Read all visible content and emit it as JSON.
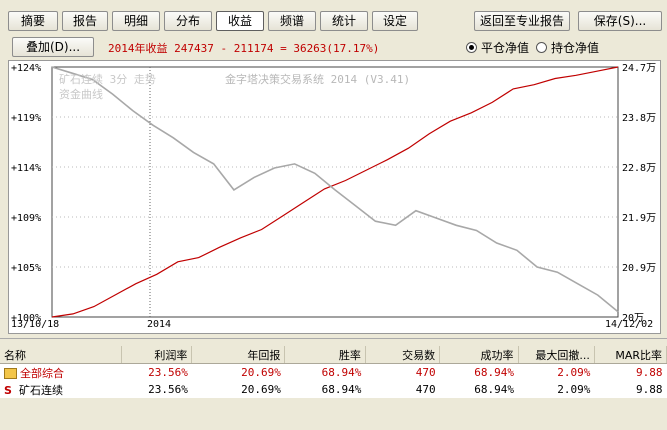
{
  "tabs": [
    "摘要",
    "报告",
    "明细",
    "分布",
    "收益",
    "频谱",
    "统计",
    "设定"
  ],
  "active_tab": "收益",
  "toolbar": {
    "back_label": "返回至专业报告",
    "save_label": "保存(S)...",
    "overlay_label": "叠加(D)...",
    "year_summary": "2014年收益 247437 - 211174 = 36263(17.17%)",
    "radio_flat": "平仓净值",
    "radio_hold": "持仓净值"
  },
  "chart": {
    "watermark_symbol": "矿石连续 3分 走势",
    "watermark_sub": "资金曲线",
    "watermark_title": "金字塔决策交易系统 2014 (V3.41)",
    "left_ticks": [
      "+124%",
      "+119%",
      "+114%",
      "+109%",
      "+105%",
      "+100%"
    ],
    "right_ticks": [
      "24.7万",
      "23.8万",
      "22.8万",
      "21.9万",
      "20.9万",
      "20万"
    ],
    "x_start": "13/10/18",
    "x_mid": "2014",
    "x_end": "14/12/02"
  },
  "chart_data": {
    "type": "line",
    "x_labels": [
      "13/10/18",
      "2014",
      "14/12/02"
    ],
    "ylim_left_pct": [
      100,
      124
    ],
    "ylim_right_wan": [
      20,
      24.7
    ],
    "series": [
      {
        "color": "#c00000",
        "values": [
          100,
          100.3,
          101,
          102.1,
          103.2,
          104.1,
          105.3,
          105.7,
          106.7,
          107.6,
          108.4,
          109.7,
          111,
          112.3,
          113.1,
          114.1,
          115.1,
          116.2,
          117.6,
          118.8,
          119.6,
          120.6,
          121.9,
          122.3,
          122.9,
          123.2,
          123.6,
          124
        ]
      },
      {
        "color": "#a8a8a8",
        "values": [
          124,
          123.4,
          122.8,
          121.4,
          119.8,
          118.4,
          117.2,
          115.8,
          114.7,
          112.2,
          113.4,
          114.3,
          114.7,
          113.8,
          112.2,
          110.7,
          109.2,
          108.8,
          110.2,
          109.5,
          108.8,
          108.3,
          107.1,
          106.4,
          104.8,
          104.3,
          103.2,
          102.1,
          100.5
        ]
      }
    ]
  },
  "table": {
    "headers": [
      "名称",
      "利润率",
      "年回报",
      "胜率",
      "交易数",
      "成功率",
      "最大回撤...",
      "MAR比率"
    ],
    "rows": [
      {
        "name": "全部综合",
        "cells": [
          "23.56%",
          "20.69%",
          "68.94%",
          "470",
          "68.94%",
          "2.09%",
          "9.88"
        ]
      },
      {
        "name": "矿石连续",
        "cells": [
          "23.56%",
          "20.69%",
          "68.94%",
          "470",
          "68.94%",
          "2.09%",
          "9.88"
        ]
      }
    ]
  }
}
